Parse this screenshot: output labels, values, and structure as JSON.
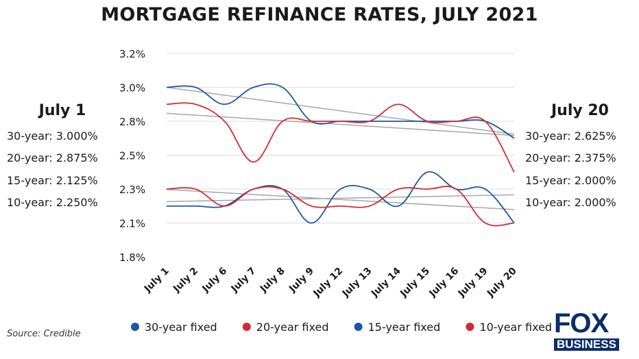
{
  "header": {
    "title": "MORTGAGE REFINANCE RATES, JULY 2021"
  },
  "left_panel": {
    "heading": "July 1",
    "lines": [
      "30-year: 3.000%",
      "20-year: 2.875%",
      "15-year: 2.125%",
      "10-year: 2.250%"
    ]
  },
  "right_panel": {
    "heading": "July 20",
    "lines": [
      "30-year: 2.625%",
      "20-year: 2.375%",
      "15-year: 2.000%",
      "10-year: 2.000%"
    ]
  },
  "footer": {
    "source": "Source: Credible"
  },
  "logo": {
    "top": "FOX",
    "bottom": "BUSINESS"
  },
  "colors": {
    "blue": "#1a56a8",
    "red": "#d42a2f",
    "grid": "#dddddd",
    "trend": "#a6a6a6"
  },
  "chart_data": {
    "type": "line",
    "title": "MORTGAGE REFINANCE RATES, JULY 2021",
    "categories": [
      "July 1",
      "July 2",
      "July 6",
      "July 7",
      "July 8",
      "July 9",
      "July 12",
      "July 13",
      "July 14",
      "July 15",
      "July 16",
      "July 19",
      "July 20"
    ],
    "y_tick_labels": [
      "3.2%",
      "3.0%",
      "2.8%",
      "2.5%",
      "2.3%",
      "2.1%",
      "1.8%"
    ],
    "ylim": [
      1.75,
      3.25
    ],
    "grid": true,
    "legend_position": "bottom",
    "trendlines": true,
    "series": [
      {
        "name": "30-year fixed",
        "color": "#1a56a8",
        "values": [
          3.0,
          3.0,
          2.875,
          3.0,
          3.0,
          2.75,
          2.75,
          2.75,
          2.75,
          2.75,
          2.75,
          2.75,
          2.625
        ]
      },
      {
        "name": "20-year fixed",
        "color": "#d42a2f",
        "values": [
          2.875,
          2.875,
          2.75,
          2.45,
          2.75,
          2.75,
          2.75,
          2.75,
          2.875,
          2.75,
          2.75,
          2.75,
          2.375
        ]
      },
      {
        "name": "15-year fixed",
        "color": "#1a56a8",
        "values": [
          2.125,
          2.125,
          2.125,
          2.25,
          2.25,
          2.0,
          2.25,
          2.25,
          2.125,
          2.375,
          2.25,
          2.25,
          2.0
        ]
      },
      {
        "name": "10-year fixed",
        "color": "#d42a2f",
        "values": [
          2.25,
          2.25,
          2.125,
          2.25,
          2.25,
          2.125,
          2.125,
          2.125,
          2.25,
          2.25,
          2.25,
          2.0,
          2.0
        ]
      }
    ]
  }
}
